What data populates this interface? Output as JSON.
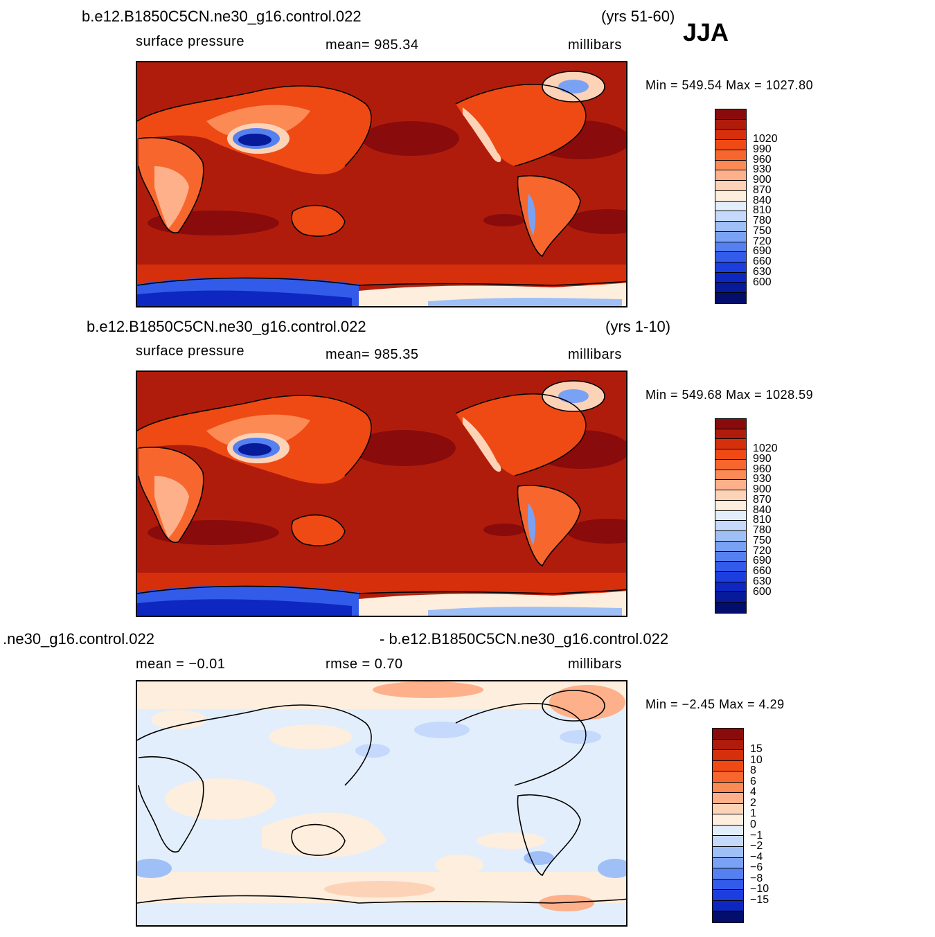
{
  "season": "JJA",
  "panels": [
    {
      "id": "test",
      "title_left": "b.e12.B1850C5CN.ne30_g16.control.022",
      "title_right": "(yrs 51-60)",
      "variable": "surface pressure",
      "stat": "mean=  985.34",
      "units": "millibars",
      "minmax": "Min  =  549.54  Max  =  1027.80",
      "colors": [
        "#8a0b0b",
        "#b01c0c",
        "#d52f0c",
        "#f04a14",
        "#f7672d",
        "#fb8a55",
        "#fdb08a",
        "#fdd3b8",
        "#fdeede",
        "#e3eefc",
        "#c4d9fb",
        "#9fbff7",
        "#7aa2f4",
        "#5580f0",
        "#325bea",
        "#1d3ede",
        "#0e27c1",
        "#061a9a",
        "#020d6c"
      ],
      "labels": [
        "1020",
        "990",
        "960",
        "930",
        "900",
        "870",
        "840",
        "810",
        "780",
        "750",
        "720",
        "690",
        "660",
        "630",
        "600"
      ]
    },
    {
      "id": "control",
      "title_left": "b.e12.B1850C5CN.ne30_g16.control.022",
      "title_right": "(yrs 1-10)",
      "variable": "surface pressure",
      "stat": "mean=  985.35",
      "units": "millibars",
      "minmax": "Min  =  549.68  Max  =  1028.59",
      "colors": [
        "#8a0b0b",
        "#b01c0c",
        "#d52f0c",
        "#f04a14",
        "#f7672d",
        "#fb8a55",
        "#fdb08a",
        "#fdd3b8",
        "#fdeede",
        "#e3eefc",
        "#c4d9fb",
        "#9fbff7",
        "#7aa2f4",
        "#5580f0",
        "#325bea",
        "#1d3ede",
        "#0e27c1",
        "#061a9a",
        "#020d6c"
      ],
      "labels": [
        "1020",
        "990",
        "960",
        "930",
        "900",
        "870",
        "840",
        "810",
        "780",
        "750",
        "720",
        "690",
        "660",
        "630",
        "600"
      ]
    },
    {
      "id": "difference",
      "title_left": ".ne30_g16.control.022",
      "title_right": "- b.e12.B1850C5CN.ne30_g16.control.022",
      "stat": "mean  =    −0.01",
      "stat2": "rmse  =      0.70",
      "units": "millibars",
      "minmax": "Min  =    −2.45  Max  =      4.29",
      "colors": [
        "#8a0b0b",
        "#b01c0c",
        "#d52f0c",
        "#f04a14",
        "#f7672d",
        "#fb8a55",
        "#fdb08a",
        "#fdd3b8",
        "#fdeede",
        "#e3eefc",
        "#c4d9fb",
        "#9fbff7",
        "#7aa2f4",
        "#5580f0",
        "#325bea",
        "#1d3ede",
        "#0e27c1",
        "#020d6c"
      ],
      "labels": [
        "15",
        "10",
        "8",
        "6",
        "4",
        "2",
        "1",
        "0",
        "−1",
        "−2",
        "−4",
        "−6",
        "−8",
        "−10",
        "−15"
      ]
    }
  ]
}
